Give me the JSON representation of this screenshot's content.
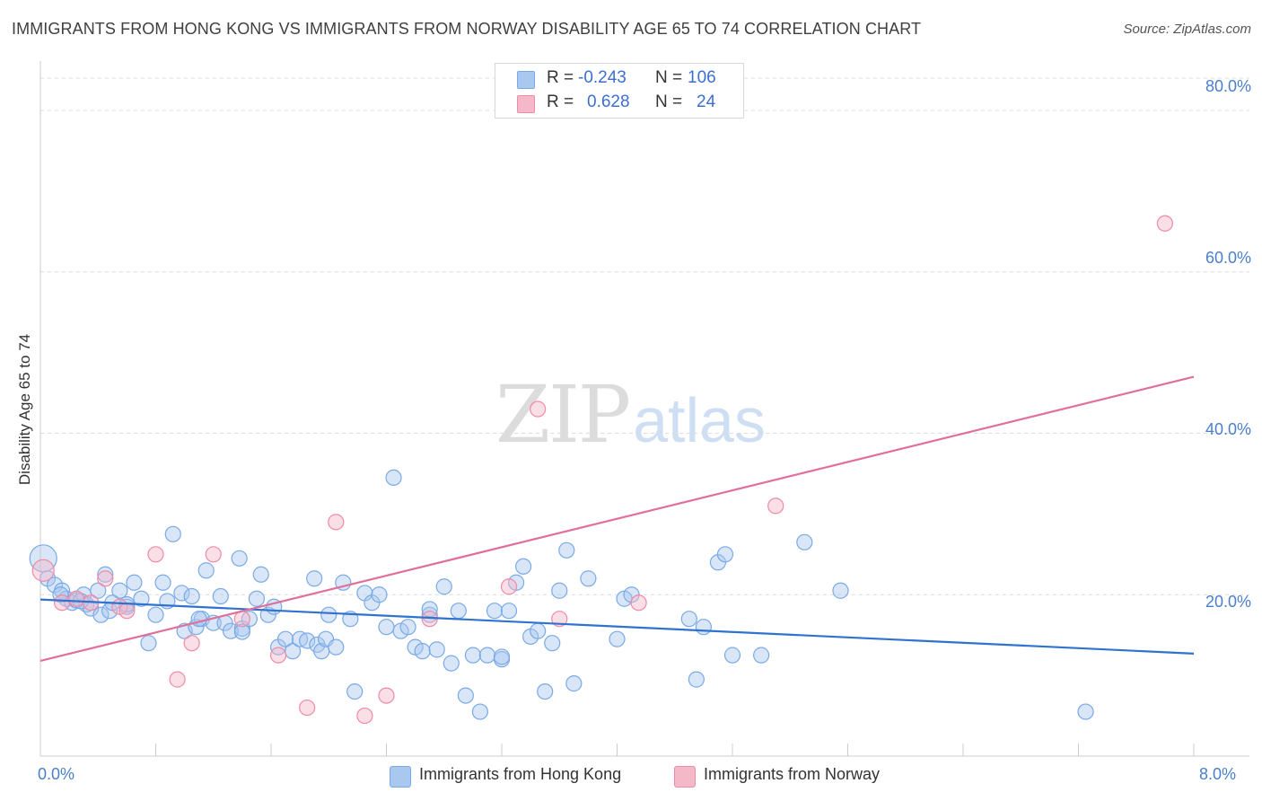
{
  "title": "IMMIGRANTS FROM HONG KONG VS IMMIGRANTS FROM NORWAY DISABILITY AGE 65 TO 74 CORRELATION CHART",
  "source": "Source: ZipAtlas.com",
  "watermark": {
    "zip": "ZIP",
    "atlas": "atlas"
  },
  "legend": {
    "rows": [
      {
        "r_label": "R =",
        "r_value": "-0.243",
        "n_label": "N =",
        "n_value": "106",
        "color": "#a9c8f0"
      },
      {
        "r_label": "R =",
        "r_value": "0.628",
        "n_label": "N =",
        "n_value": "24",
        "color": "#f5b8c9"
      }
    ]
  },
  "bottom_legend": {
    "items": [
      {
        "label": "Immigrants from Hong Kong",
        "color": "#a9c8f0"
      },
      {
        "label": "Immigrants from Norway",
        "color": "#f5b8c9"
      }
    ]
  },
  "chart_data": {
    "type": "scatter",
    "title": "IMMIGRANTS FROM HONG KONG VS IMMIGRANTS FROM NORWAY DISABILITY AGE 65 TO 74 CORRELATION CHART",
    "xlabel": "",
    "ylabel": "Disability Age 65 to 74",
    "xlim": [
      0,
      8
    ],
    "ylim": [
      0,
      85
    ],
    "x_tick_labels": [
      "0.0%",
      "8.0%"
    ],
    "y_tick_labels": [
      "20.0%",
      "40.0%",
      "60.0%",
      "80.0%"
    ],
    "y_ticks": [
      20,
      40,
      60,
      80
    ],
    "grid": true,
    "legend_position": "top-center",
    "series": [
      {
        "name": "Immigrants from Hong Kong",
        "color": "#7aaae6",
        "fill": "#a9c8f0",
        "trend": {
          "x": [
            0,
            8
          ],
          "y": [
            19.4,
            12.7
          ]
        },
        "points": [
          [
            0.02,
            24.5
          ],
          [
            0.05,
            22.0
          ],
          [
            0.1,
            21.2
          ],
          [
            0.15,
            20.5
          ],
          [
            0.18,
            19.5
          ],
          [
            0.22,
            19.0
          ],
          [
            0.25,
            19.3
          ],
          [
            0.3,
            20.0
          ],
          [
            0.32,
            18.8
          ],
          [
            0.35,
            18.3
          ],
          [
            0.4,
            20.5
          ],
          [
            0.42,
            17.5
          ],
          [
            0.45,
            22.5
          ],
          [
            0.48,
            18.0
          ],
          [
            0.5,
            19.0
          ],
          [
            0.55,
            20.5
          ],
          [
            0.6,
            18.5
          ],
          [
            0.65,
            21.5
          ],
          [
            0.7,
            19.5
          ],
          [
            0.75,
            14.0
          ],
          [
            0.8,
            17.5
          ],
          [
            0.85,
            21.5
          ],
          [
            0.88,
            19.2
          ],
          [
            0.92,
            27.5
          ],
          [
            0.98,
            20.2
          ],
          [
            1.0,
            15.5
          ],
          [
            1.05,
            19.8
          ],
          [
            1.08,
            16.0
          ],
          [
            1.12,
            17.0
          ],
          [
            1.15,
            23.0
          ],
          [
            1.2,
            16.5
          ],
          [
            1.25,
            19.8
          ],
          [
            1.28,
            16.5
          ],
          [
            1.32,
            15.5
          ],
          [
            1.38,
            24.5
          ],
          [
            1.4,
            15.8
          ],
          [
            1.45,
            17.0
          ],
          [
            1.5,
            19.5
          ],
          [
            1.53,
            22.5
          ],
          [
            1.58,
            17.5
          ],
          [
            1.62,
            18.5
          ],
          [
            1.65,
            13.5
          ],
          [
            1.7,
            14.5
          ],
          [
            1.75,
            13.0
          ],
          [
            1.8,
            14.5
          ],
          [
            1.85,
            14.3
          ],
          [
            1.9,
            22.0
          ],
          [
            1.92,
            13.8
          ],
          [
            1.95,
            13.0
          ],
          [
            1.98,
            14.5
          ],
          [
            2.0,
            17.5
          ],
          [
            2.05,
            13.5
          ],
          [
            2.1,
            21.5
          ],
          [
            2.15,
            17.0
          ],
          [
            2.18,
            8.0
          ],
          [
            2.25,
            20.2
          ],
          [
            2.3,
            19.0
          ],
          [
            2.35,
            20.0
          ],
          [
            2.4,
            16.0
          ],
          [
            2.45,
            34.5
          ],
          [
            2.5,
            15.5
          ],
          [
            2.55,
            16.0
          ],
          [
            2.6,
            13.5
          ],
          [
            2.65,
            13.0
          ],
          [
            2.7,
            17.5
          ],
          [
            2.75,
            13.2
          ],
          [
            2.8,
            21.0
          ],
          [
            2.85,
            11.5
          ],
          [
            2.9,
            18.0
          ],
          [
            2.95,
            7.5
          ],
          [
            3.0,
            12.5
          ],
          [
            3.05,
            5.5
          ],
          [
            3.1,
            12.5
          ],
          [
            3.15,
            18.0
          ],
          [
            3.2,
            12.0
          ],
          [
            3.25,
            18.0
          ],
          [
            3.3,
            21.5
          ],
          [
            3.35,
            23.5
          ],
          [
            3.4,
            14.8
          ],
          [
            3.45,
            15.5
          ],
          [
            3.5,
            8.0
          ],
          [
            3.55,
            14.0
          ],
          [
            3.6,
            20.5
          ],
          [
            3.65,
            25.5
          ],
          [
            3.7,
            9.0
          ],
          [
            3.8,
            22.0
          ],
          [
            4.0,
            14.5
          ],
          [
            4.05,
            19.5
          ],
          [
            4.1,
            20.0
          ],
          [
            4.5,
            17.0
          ],
          [
            4.55,
            9.5
          ],
          [
            4.6,
            16.0
          ],
          [
            4.7,
            24.0
          ],
          [
            4.75,
            25.0
          ],
          [
            4.8,
            12.5
          ],
          [
            5.0,
            12.5
          ],
          [
            5.3,
            26.5
          ],
          [
            5.55,
            20.5
          ],
          [
            7.25,
            5.5
          ],
          [
            1.4,
            15.4
          ],
          [
            0.6,
            18.8
          ],
          [
            0.28,
            19.2
          ],
          [
            0.14,
            20.0
          ],
          [
            1.1,
            17.0
          ],
          [
            2.7,
            18.2
          ],
          [
            3.2,
            12.3
          ]
        ]
      },
      {
        "name": "Immigrants from Norway",
        "color": "#f08aa7",
        "fill": "#f5b8c9",
        "trend": {
          "x": [
            0,
            8
          ],
          "y": [
            11.8,
            47.0
          ]
        },
        "points": [
          [
            0.02,
            23.0
          ],
          [
            0.15,
            19.0
          ],
          [
            0.25,
            19.5
          ],
          [
            0.35,
            19.0
          ],
          [
            0.45,
            22.0
          ],
          [
            0.55,
            18.5
          ],
          [
            0.8,
            25.0
          ],
          [
            0.95,
            9.5
          ],
          [
            1.05,
            14.0
          ],
          [
            1.2,
            25.0
          ],
          [
            1.4,
            17.0
          ],
          [
            1.65,
            12.5
          ],
          [
            1.85,
            6.0
          ],
          [
            2.05,
            29.0
          ],
          [
            2.25,
            5.0
          ],
          [
            2.4,
            7.5
          ],
          [
            2.7,
            17.0
          ],
          [
            3.25,
            21.0
          ],
          [
            3.45,
            43.0
          ],
          [
            3.6,
            17.0
          ],
          [
            4.15,
            19.0
          ],
          [
            5.1,
            31.0
          ],
          [
            7.8,
            66.0
          ],
          [
            0.6,
            18.0
          ]
        ]
      }
    ]
  }
}
